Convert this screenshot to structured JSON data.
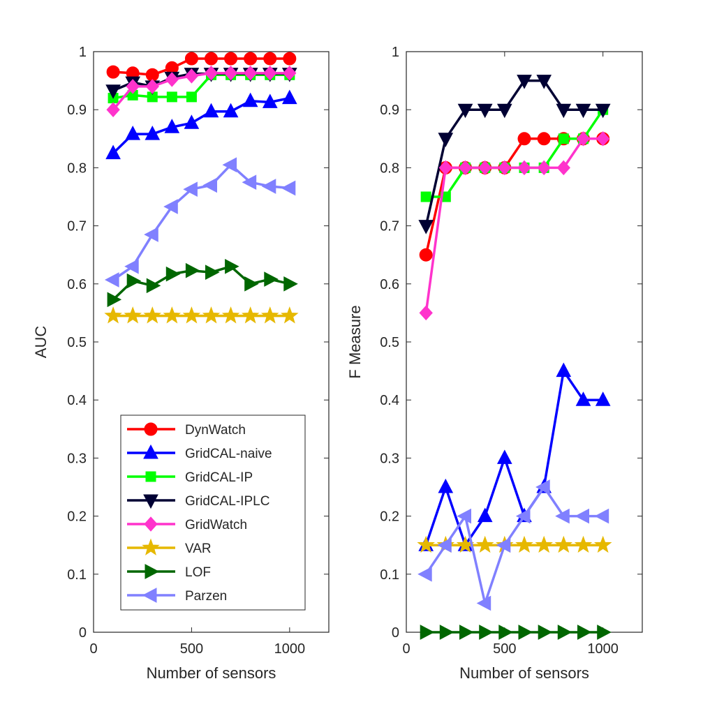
{
  "chart_data": [
    {
      "type": "line",
      "title": "",
      "xlabel": "Number of sensors",
      "ylabel": "AUC",
      "xlim": [
        0,
        1200
      ],
      "ylim": [
        0,
        1
      ],
      "xticks": [
        0,
        500,
        1000
      ],
      "yticks": [
        0,
        0.1,
        0.2,
        0.3,
        0.4,
        0.5,
        0.6,
        0.7,
        0.8,
        0.9,
        1
      ],
      "ytick_labels": [
        "0",
        "0.1",
        "0.2",
        "0.3",
        "0.4",
        "0.5",
        "0.6",
        "0.7",
        "0.8",
        "0.9",
        "1"
      ],
      "x": [
        100,
        200,
        300,
        400,
        500,
        600,
        700,
        800,
        900,
        1000
      ],
      "grid": false,
      "legend_position": "bottom-left",
      "series": [
        {
          "name": "DynWatch",
          "color": "#ff0000",
          "marker": "circle",
          "values": [
            0.965,
            0.963,
            0.96,
            0.972,
            0.988,
            0.988,
            0.988,
            0.988,
            0.988,
            0.988
          ]
        },
        {
          "name": "GridCAL-naive",
          "color": "#0000ff",
          "marker": "triangle-up",
          "values": [
            0.825,
            0.858,
            0.858,
            0.87,
            0.877,
            0.897,
            0.897,
            0.915,
            0.913,
            0.92
          ]
        },
        {
          "name": "GridCAL-IP",
          "color": "#00ff00",
          "marker": "square",
          "values": [
            0.92,
            0.925,
            0.922,
            0.922,
            0.922,
            0.96,
            0.96,
            0.96,
            0.96,
            0.96
          ]
        },
        {
          "name": "GridCAL-IPLC",
          "color": "#000033",
          "marker": "triangle-down",
          "values": [
            0.933,
            0.947,
            0.94,
            0.955,
            0.962,
            0.962,
            0.962,
            0.962,
            0.962,
            0.962
          ]
        },
        {
          "name": "GridWatch",
          "color": "#ff33cc",
          "marker": "diamond",
          "values": [
            0.9,
            0.94,
            0.94,
            0.952,
            0.958,
            0.963,
            0.963,
            0.963,
            0.963,
            0.963
          ]
        },
        {
          "name": "VAR",
          "color": "#e6b800",
          "marker": "star",
          "values": [
            0.545,
            0.545,
            0.545,
            0.545,
            0.545,
            0.545,
            0.545,
            0.545,
            0.545,
            0.545
          ]
        },
        {
          "name": "LOF",
          "color": "#006600",
          "marker": "triangle-right",
          "values": [
            0.573,
            0.605,
            0.597,
            0.617,
            0.623,
            0.62,
            0.63,
            0.6,
            0.608,
            0.6
          ]
        },
        {
          "name": "Parzen",
          "color": "#8080ff",
          "marker": "triangle-left",
          "values": [
            0.607,
            0.63,
            0.685,
            0.733,
            0.763,
            0.77,
            0.805,
            0.775,
            0.768,
            0.765
          ]
        }
      ]
    },
    {
      "type": "line",
      "title": "",
      "xlabel": "Number of sensors",
      "ylabel": "F Measure",
      "xlim": [
        0,
        1200
      ],
      "ylim": [
        0,
        1
      ],
      "xticks": [
        0,
        500,
        1000
      ],
      "yticks": [
        0,
        0.1,
        0.2,
        0.3,
        0.4,
        0.5,
        0.6,
        0.7,
        0.8,
        0.9,
        1
      ],
      "ytick_labels": [
        "0",
        "0.1",
        "0.2",
        "0.3",
        "0.4",
        "0.5",
        "0.6",
        "0.7",
        "0.8",
        "0.9",
        "1"
      ],
      "x": [
        100,
        200,
        300,
        400,
        500,
        600,
        700,
        800,
        900,
        1000
      ],
      "grid": false,
      "series": [
        {
          "name": "DynWatch",
          "color": "#ff0000",
          "marker": "circle",
          "values": [
            0.65,
            0.8,
            0.8,
            0.8,
            0.8,
            0.85,
            0.85,
            0.85,
            0.85,
            0.85
          ]
        },
        {
          "name": "GridCAL-naive",
          "color": "#0000ff",
          "marker": "triangle-up",
          "values": [
            0.15,
            0.25,
            0.15,
            0.2,
            0.3,
            0.2,
            0.25,
            0.45,
            0.4,
            0.4
          ]
        },
        {
          "name": "GridCAL-IP",
          "color": "#00ff00",
          "marker": "square",
          "values": [
            0.75,
            0.75,
            0.8,
            0.8,
            0.8,
            0.8,
            0.8,
            0.85,
            0.85,
            0.9
          ]
        },
        {
          "name": "GridCAL-IPLC",
          "color": "#000033",
          "marker": "triangle-down",
          "values": [
            0.7,
            0.85,
            0.9,
            0.9,
            0.9,
            0.95,
            0.95,
            0.9,
            0.9,
            0.9
          ]
        },
        {
          "name": "GridWatch",
          "color": "#ff33cc",
          "marker": "diamond",
          "values": [
            0.55,
            0.8,
            0.8,
            0.8,
            0.8,
            0.8,
            0.8,
            0.8,
            0.85,
            0.85
          ]
        },
        {
          "name": "VAR",
          "color": "#e6b800",
          "marker": "star",
          "values": [
            0.15,
            0.15,
            0.15,
            0.15,
            0.15,
            0.15,
            0.15,
            0.15,
            0.15,
            0.15
          ]
        },
        {
          "name": "LOF",
          "color": "#006600",
          "marker": "triangle-right",
          "values": [
            0,
            0,
            0,
            0,
            0,
            0,
            0,
            0,
            0,
            0
          ]
        },
        {
          "name": "Parzen",
          "color": "#8080ff",
          "marker": "triangle-left",
          "values": [
            0.1,
            0.15,
            0.2,
            0.05,
            0.15,
            0.2,
            0.25,
            0.2,
            0.2,
            0.2
          ]
        }
      ]
    }
  ]
}
